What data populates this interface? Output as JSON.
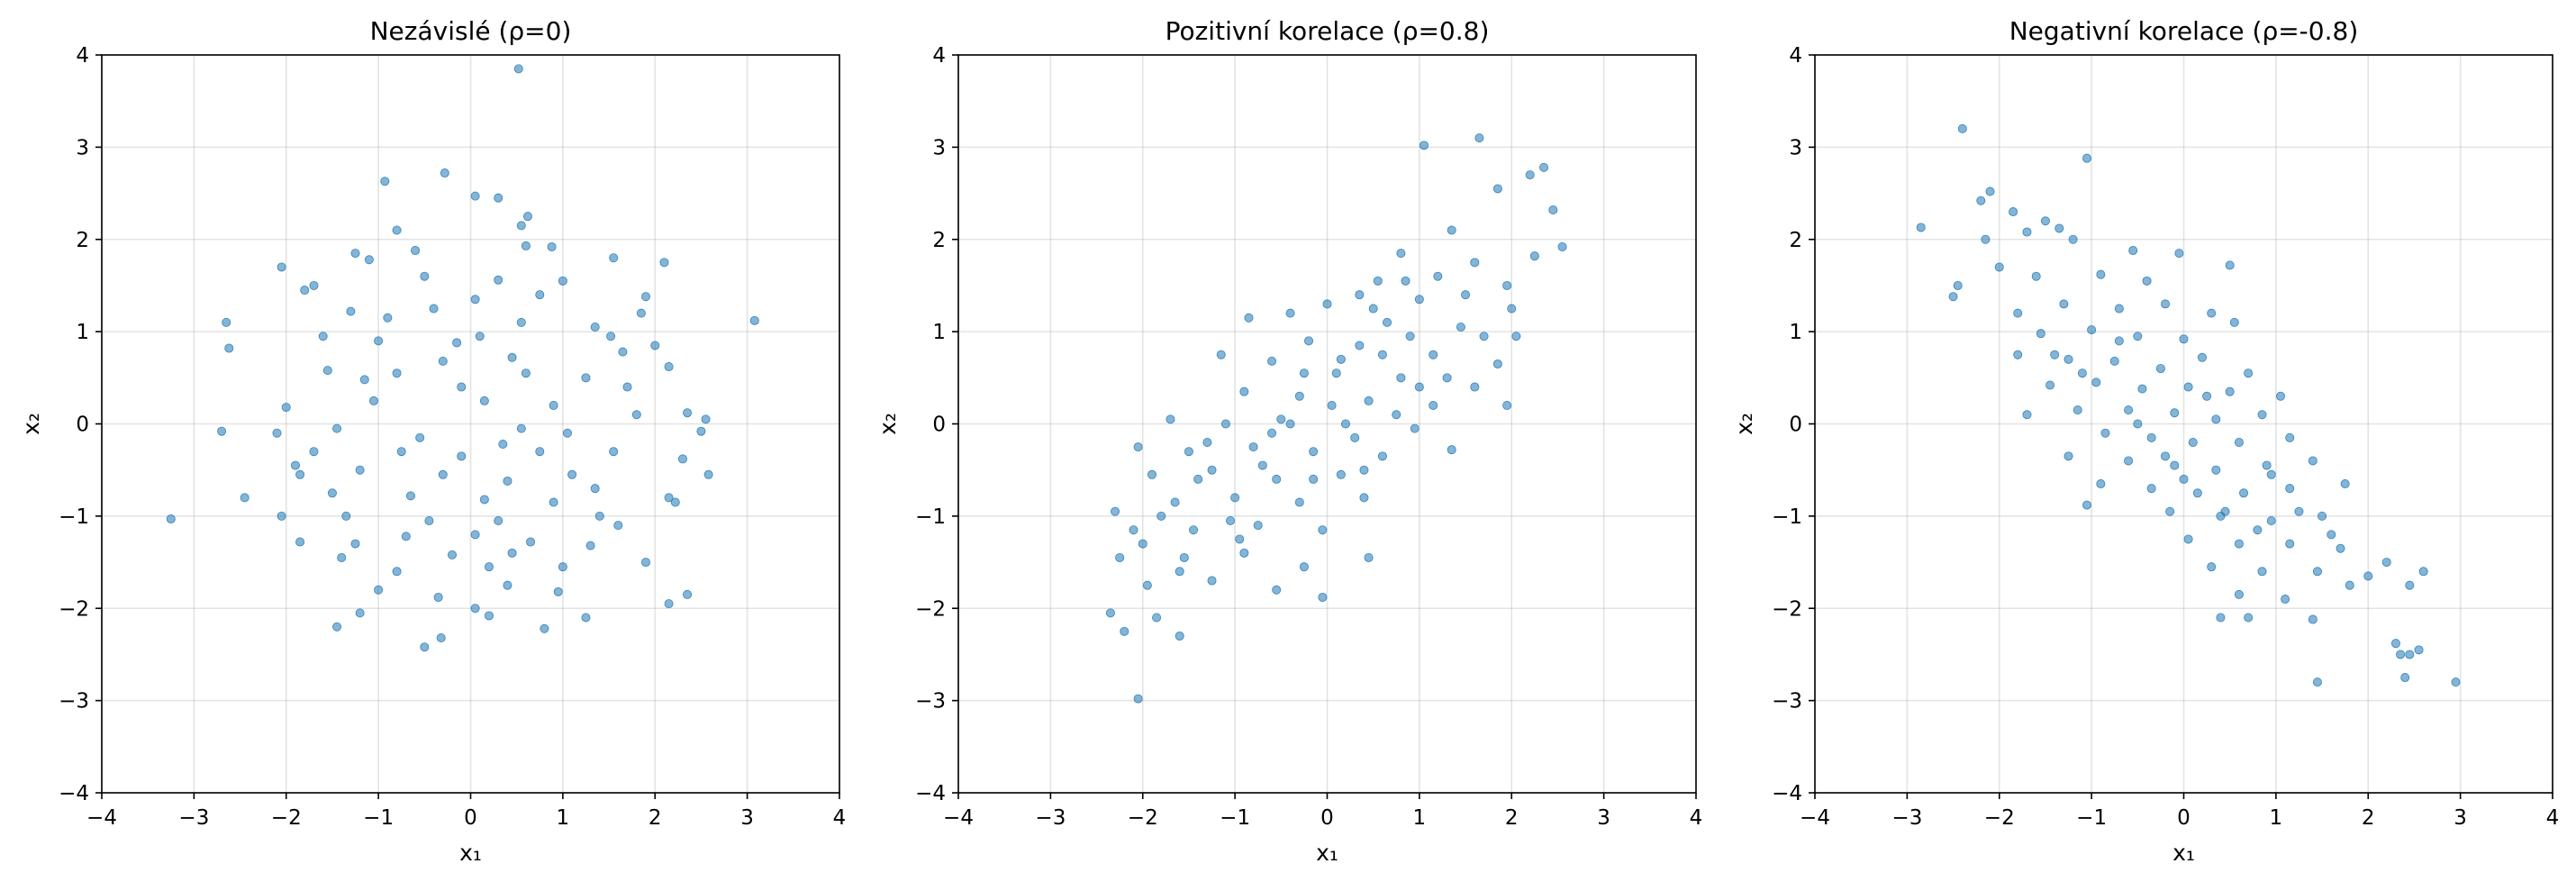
{
  "colors": {
    "points": "#1f77b4"
  },
  "chart_data": [
    {
      "type": "scatter",
      "title": "Nezávislé (ρ=0)",
      "xlabel": "x₁",
      "ylabel": "x₂",
      "xlim": [
        -4,
        4
      ],
      "ylim": [
        -4,
        4
      ],
      "xticks": [
        -4,
        -3,
        -2,
        -1,
        0,
        1,
        2,
        3,
        4
      ],
      "yticks": [
        -4,
        -3,
        -2,
        -1,
        0,
        1,
        2,
        3,
        4
      ],
      "grid": true,
      "marker_color": "#1f77b4",
      "points": [
        [
          0.52,
          3.85
        ],
        [
          -0.28,
          2.72
        ],
        [
          -0.93,
          2.63
        ],
        [
          0.05,
          2.47
        ],
        [
          0.3,
          2.45
        ],
        [
          0.62,
          2.25
        ],
        [
          0.55,
          2.15
        ],
        [
          -0.8,
          2.1
        ],
        [
          0.88,
          1.92
        ],
        [
          0.6,
          1.93
        ],
        [
          -1.25,
          1.85
        ],
        [
          -0.6,
          1.88
        ],
        [
          -2.05,
          1.7
        ],
        [
          2.1,
          1.75
        ],
        [
          1.55,
          1.8
        ],
        [
          -1.7,
          1.5
        ],
        [
          -1.8,
          1.45
        ],
        [
          -1.1,
          1.78
        ],
        [
          -0.5,
          1.6
        ],
        [
          0.3,
          1.56
        ],
        [
          1.0,
          1.55
        ],
        [
          -2.65,
          1.1
        ],
        [
          3.08,
          1.12
        ],
        [
          -2.62,
          0.82
        ],
        [
          1.9,
          1.38
        ],
        [
          1.85,
          1.2
        ],
        [
          -1.3,
          1.22
        ],
        [
          -0.9,
          1.15
        ],
        [
          0.55,
          1.1
        ],
        [
          1.35,
          1.05
        ],
        [
          -1.6,
          0.95
        ],
        [
          0.1,
          0.95
        ],
        [
          -0.15,
          0.88
        ],
        [
          1.52,
          0.95
        ],
        [
          2.0,
          0.85
        ],
        [
          1.65,
          0.78
        ],
        [
          2.15,
          0.62
        ],
        [
          -1.55,
          0.58
        ],
        [
          -0.8,
          0.55
        ],
        [
          -0.3,
          0.68
        ],
        [
          0.45,
          0.72
        ],
        [
          1.25,
          0.5
        ],
        [
          -2.0,
          0.18
        ],
        [
          -1.05,
          0.25
        ],
        [
          0.15,
          0.25
        ],
        [
          0.9,
          0.2
        ],
        [
          1.8,
          0.1
        ],
        [
          2.35,
          0.12
        ],
        [
          2.55,
          0.05
        ],
        [
          -2.7,
          -0.08
        ],
        [
          -2.1,
          -0.1
        ],
        [
          -1.45,
          -0.05
        ],
        [
          -0.55,
          -0.15
        ],
        [
          0.35,
          -0.22
        ],
        [
          1.05,
          -0.1
        ],
        [
          2.5,
          -0.08
        ],
        [
          -1.7,
          -0.3
        ],
        [
          -0.1,
          -0.35
        ],
        [
          0.75,
          -0.3
        ],
        [
          1.55,
          -0.3
        ],
        [
          2.3,
          -0.38
        ],
        [
          -2.45,
          -0.8
        ],
        [
          -1.85,
          -0.55
        ],
        [
          -1.2,
          -0.5
        ],
        [
          -0.3,
          -0.55
        ],
        [
          0.4,
          -0.62
        ],
        [
          1.1,
          -0.55
        ],
        [
          2.58,
          -0.55
        ],
        [
          -1.5,
          -0.75
        ],
        [
          -0.65,
          -0.78
        ],
        [
          0.15,
          -0.82
        ],
        [
          0.9,
          -0.85
        ],
        [
          2.15,
          -0.8
        ],
        [
          2.22,
          -0.85
        ],
        [
          -3.25,
          -1.03
        ],
        [
          -2.05,
          -1.0
        ],
        [
          -1.35,
          -1.0
        ],
        [
          -0.45,
          -1.05
        ],
        [
          0.3,
          -1.05
        ],
        [
          1.4,
          -1.0
        ],
        [
          1.6,
          -1.1
        ],
        [
          -1.85,
          -1.28
        ],
        [
          -1.25,
          -1.3
        ],
        [
          -0.7,
          -1.22
        ],
        [
          0.05,
          -1.2
        ],
        [
          0.65,
          -1.28
        ],
        [
          1.3,
          -1.32
        ],
        [
          -1.4,
          -1.45
        ],
        [
          -0.8,
          -1.6
        ],
        [
          0.2,
          -1.55
        ],
        [
          1.0,
          -1.55
        ],
        [
          1.9,
          -1.5
        ],
        [
          -1.0,
          -1.8
        ],
        [
          -0.35,
          -1.88
        ],
        [
          0.4,
          -1.75
        ],
        [
          0.95,
          -1.82
        ],
        [
          2.35,
          -1.85
        ],
        [
          2.15,
          -1.95
        ],
        [
          -1.2,
          -2.05
        ],
        [
          0.05,
          -2.0
        ],
        [
          0.2,
          -2.08
        ],
        [
          0.8,
          -2.22
        ],
        [
          1.25,
          -2.1
        ],
        [
          -1.45,
          -2.2
        ],
        [
          -0.5,
          -2.42
        ],
        [
          -0.32,
          -2.32
        ],
        [
          -1.9,
          -0.45
        ],
        [
          -1.0,
          0.9
        ],
        [
          -0.4,
          1.25
        ],
        [
          0.05,
          1.35
        ],
        [
          0.75,
          1.4
        ],
        [
          -1.15,
          0.48
        ],
        [
          -0.1,
          0.4
        ],
        [
          0.6,
          0.55
        ],
        [
          1.7,
          0.4
        ],
        [
          -0.75,
          -0.3
        ],
        [
          0.55,
          -0.05
        ],
        [
          1.35,
          -0.7
        ],
        [
          -0.2,
          -1.42
        ],
        [
          0.45,
          -1.4
        ]
      ]
    },
    {
      "type": "scatter",
      "title": "Pozitivní korelace (ρ=0.8)",
      "xlabel": "x₁",
      "ylabel": "x₂",
      "xlim": [
        -4,
        4
      ],
      "ylim": [
        -4,
        4
      ],
      "xticks": [
        -4,
        -3,
        -2,
        -1,
        0,
        1,
        2,
        3,
        4
      ],
      "yticks": [
        -4,
        -3,
        -2,
        -1,
        0,
        1,
        2,
        3,
        4
      ],
      "grid": true,
      "marker_color": "#1f77b4",
      "points": [
        [
          1.65,
          3.1
        ],
        [
          1.05,
          3.02
        ],
        [
          2.35,
          2.78
        ],
        [
          2.2,
          2.7
        ],
        [
          1.85,
          2.55
        ],
        [
          2.45,
          2.32
        ],
        [
          1.35,
          2.1
        ],
        [
          2.55,
          1.92
        ],
        [
          0.8,
          1.85
        ],
        [
          1.6,
          1.75
        ],
        [
          2.25,
          1.82
        ],
        [
          1.2,
          1.6
        ],
        [
          0.55,
          1.55
        ],
        [
          1.95,
          1.5
        ],
        [
          0.35,
          1.4
        ],
        [
          1.0,
          1.35
        ],
        [
          0.0,
          1.3
        ],
        [
          -0.4,
          1.2
        ],
        [
          -0.85,
          1.15
        ],
        [
          0.65,
          1.1
        ],
        [
          1.45,
          1.05
        ],
        [
          2.05,
          0.95
        ],
        [
          -0.2,
          0.9
        ],
        [
          0.35,
          0.85
        ],
        [
          1.15,
          0.75
        ],
        [
          -1.15,
          0.75
        ],
        [
          -0.6,
          0.68
        ],
        [
          0.1,
          0.55
        ],
        [
          0.8,
          0.5
        ],
        [
          1.6,
          0.4
        ],
        [
          -0.9,
          0.35
        ],
        [
          -0.3,
          0.3
        ],
        [
          0.45,
          0.25
        ],
        [
          1.15,
          0.2
        ],
        [
          1.95,
          0.2
        ],
        [
          -1.7,
          0.05
        ],
        [
          -1.1,
          0.0
        ],
        [
          -0.5,
          0.05
        ],
        [
          0.2,
          0.0
        ],
        [
          0.95,
          -0.05
        ],
        [
          -2.05,
          -0.25
        ],
        [
          -1.5,
          -0.3
        ],
        [
          -0.8,
          -0.25
        ],
        [
          -0.15,
          -0.3
        ],
        [
          0.6,
          -0.35
        ],
        [
          1.35,
          -0.28
        ],
        [
          -1.9,
          -0.55
        ],
        [
          -1.25,
          -0.5
        ],
        [
          -0.55,
          -0.6
        ],
        [
          0.15,
          -0.55
        ],
        [
          -2.3,
          -0.95
        ],
        [
          -1.65,
          -0.85
        ],
        [
          -1.0,
          -0.8
        ],
        [
          -0.3,
          -0.85
        ],
        [
          0.4,
          -0.8
        ],
        [
          -2.1,
          -1.15
        ],
        [
          -1.45,
          -1.15
        ],
        [
          -0.75,
          -1.1
        ],
        [
          -0.05,
          -1.15
        ],
        [
          -2.25,
          -1.45
        ],
        [
          -1.55,
          -1.45
        ],
        [
          -0.9,
          -1.4
        ],
        [
          -0.25,
          -1.55
        ],
        [
          0.45,
          -1.45
        ],
        [
          -1.95,
          -1.75
        ],
        [
          -1.25,
          -1.7
        ],
        [
          -0.55,
          -1.8
        ],
        [
          -2.35,
          -2.05
        ],
        [
          -1.85,
          -2.1
        ],
        [
          -1.6,
          -2.3
        ],
        [
          -2.2,
          -2.25
        ],
        [
          -0.05,
          -1.88
        ],
        [
          -2.05,
          -2.98
        ],
        [
          -0.4,
          0.0
        ],
        [
          0.6,
          0.75
        ],
        [
          0.9,
          0.95
        ],
        [
          -1.3,
          -0.2
        ],
        [
          0.05,
          0.2
        ],
        [
          -0.7,
          -0.45
        ],
        [
          0.3,
          -0.15
        ],
        [
          1.7,
          0.95
        ],
        [
          2.0,
          1.25
        ],
        [
          -1.8,
          -1.0
        ],
        [
          -0.15,
          -0.6
        ],
        [
          1.3,
          0.5
        ],
        [
          -1.05,
          -1.05
        ],
        [
          0.75,
          0.1
        ],
        [
          -0.6,
          -0.1
        ],
        [
          0.5,
          1.25
        ],
        [
          1.5,
          1.4
        ],
        [
          -1.4,
          -0.6
        ],
        [
          -0.95,
          -1.25
        ],
        [
          0.15,
          0.7
        ],
        [
          1.0,
          0.4
        ],
        [
          -0.25,
          0.55
        ],
        [
          -1.6,
          -1.6
        ],
        [
          0.85,
          1.55
        ],
        [
          1.85,
          0.65
        ],
        [
          -2.0,
          -1.3
        ],
        [
          0.4,
          -0.5
        ]
      ]
    },
    {
      "type": "scatter",
      "title": "Negativní korelace (ρ=-0.8)",
      "xlabel": "x₁",
      "ylabel": "x₂",
      "xlim": [
        -4,
        4
      ],
      "ylim": [
        -4,
        4
      ],
      "xticks": [
        -4,
        -3,
        -2,
        -1,
        0,
        1,
        2,
        3,
        4
      ],
      "yticks": [
        -4,
        -3,
        -2,
        -1,
        0,
        1,
        2,
        3,
        4
      ],
      "grid": true,
      "marker_color": "#1f77b4",
      "points": [
        [
          -2.4,
          3.2
        ],
        [
          -1.05,
          2.88
        ],
        [
          -2.85,
          2.13
        ],
        [
          -2.1,
          2.52
        ],
        [
          -2.2,
          2.42
        ],
        [
          -1.85,
          2.3
        ],
        [
          -1.5,
          2.2
        ],
        [
          -1.7,
          2.08
        ],
        [
          -1.35,
          2.12
        ],
        [
          -2.15,
          2.0
        ],
        [
          -1.2,
          2.0
        ],
        [
          -0.55,
          1.88
        ],
        [
          -0.05,
          1.85
        ],
        [
          -2.45,
          1.5
        ],
        [
          -2.0,
          1.7
        ],
        [
          -1.6,
          1.6
        ],
        [
          -0.9,
          1.62
        ],
        [
          -0.4,
          1.55
        ],
        [
          0.5,
          1.72
        ],
        [
          -2.5,
          1.38
        ],
        [
          -1.8,
          1.2
        ],
        [
          -1.3,
          1.3
        ],
        [
          -0.7,
          1.25
        ],
        [
          -0.2,
          1.3
        ],
        [
          0.3,
          1.2
        ],
        [
          -1.55,
          0.98
        ],
        [
          -1.0,
          1.02
        ],
        [
          -0.5,
          0.95
        ],
        [
          0.0,
          0.92
        ],
        [
          0.55,
          1.1
        ],
        [
          -1.8,
          0.75
        ],
        [
          -1.25,
          0.7
        ],
        [
          -0.75,
          0.68
        ],
        [
          -0.25,
          0.6
        ],
        [
          0.2,
          0.72
        ],
        [
          0.7,
          0.55
        ],
        [
          -1.45,
          0.42
        ],
        [
          -0.95,
          0.45
        ],
        [
          -0.45,
          0.38
        ],
        [
          0.05,
          0.4
        ],
        [
          0.5,
          0.35
        ],
        [
          1.05,
          0.3
        ],
        [
          -1.7,
          0.1
        ],
        [
          -1.15,
          0.15
        ],
        [
          -0.6,
          0.15
        ],
        [
          -0.1,
          0.12
        ],
        [
          0.35,
          0.05
        ],
        [
          0.85,
          0.1
        ],
        [
          -0.85,
          -0.1
        ],
        [
          -0.35,
          -0.15
        ],
        [
          0.1,
          -0.2
        ],
        [
          0.6,
          -0.2
        ],
        [
          1.15,
          -0.15
        ],
        [
          -1.25,
          -0.35
        ],
        [
          -0.6,
          -0.4
        ],
        [
          -0.1,
          -0.45
        ],
        [
          0.35,
          -0.5
        ],
        [
          0.9,
          -0.45
        ],
        [
          1.4,
          -0.4
        ],
        [
          -0.9,
          -0.65
        ],
        [
          -0.35,
          -0.7
        ],
        [
          0.15,
          -0.75
        ],
        [
          0.65,
          -0.75
        ],
        [
          1.15,
          -0.7
        ],
        [
          1.75,
          -0.65
        ],
        [
          -1.05,
          -0.88
        ],
        [
          -0.15,
          -0.95
        ],
        [
          0.4,
          -1.0
        ],
        [
          0.95,
          -1.05
        ],
        [
          1.5,
          -1.0
        ],
        [
          0.05,
          -1.25
        ],
        [
          0.6,
          -1.3
        ],
        [
          1.15,
          -1.3
        ],
        [
          1.7,
          -1.35
        ],
        [
          2.2,
          -1.5
        ],
        [
          0.3,
          -1.55
        ],
        [
          0.85,
          -1.6
        ],
        [
          1.45,
          -1.6
        ],
        [
          2.0,
          -1.65
        ],
        [
          2.6,
          -1.6
        ],
        [
          0.6,
          -1.85
        ],
        [
          1.1,
          -1.9
        ],
        [
          1.8,
          -1.75
        ],
        [
          2.45,
          -1.75
        ],
        [
          0.4,
          -2.1
        ],
        [
          0.7,
          -2.1
        ],
        [
          1.4,
          -2.12
        ],
        [
          2.3,
          -2.38
        ],
        [
          2.35,
          -2.5
        ],
        [
          2.45,
          -2.5
        ],
        [
          2.55,
          -2.45
        ],
        [
          2.4,
          -2.75
        ],
        [
          1.45,
          -2.8
        ],
        [
          2.95,
          -2.8
        ],
        [
          0.8,
          -1.15
        ],
        [
          -0.5,
          0.0
        ],
        [
          0.25,
          0.3
        ],
        [
          -1.1,
          0.55
        ],
        [
          1.25,
          -0.95
        ],
        [
          -0.2,
          -0.35
        ],
        [
          0.95,
          -0.55
        ],
        [
          -0.7,
          0.9
        ],
        [
          1.6,
          -1.2
        ],
        [
          0.45,
          -0.95
        ],
        [
          -1.4,
          0.75
        ],
        [
          0.0,
          -0.6
        ]
      ]
    }
  ]
}
